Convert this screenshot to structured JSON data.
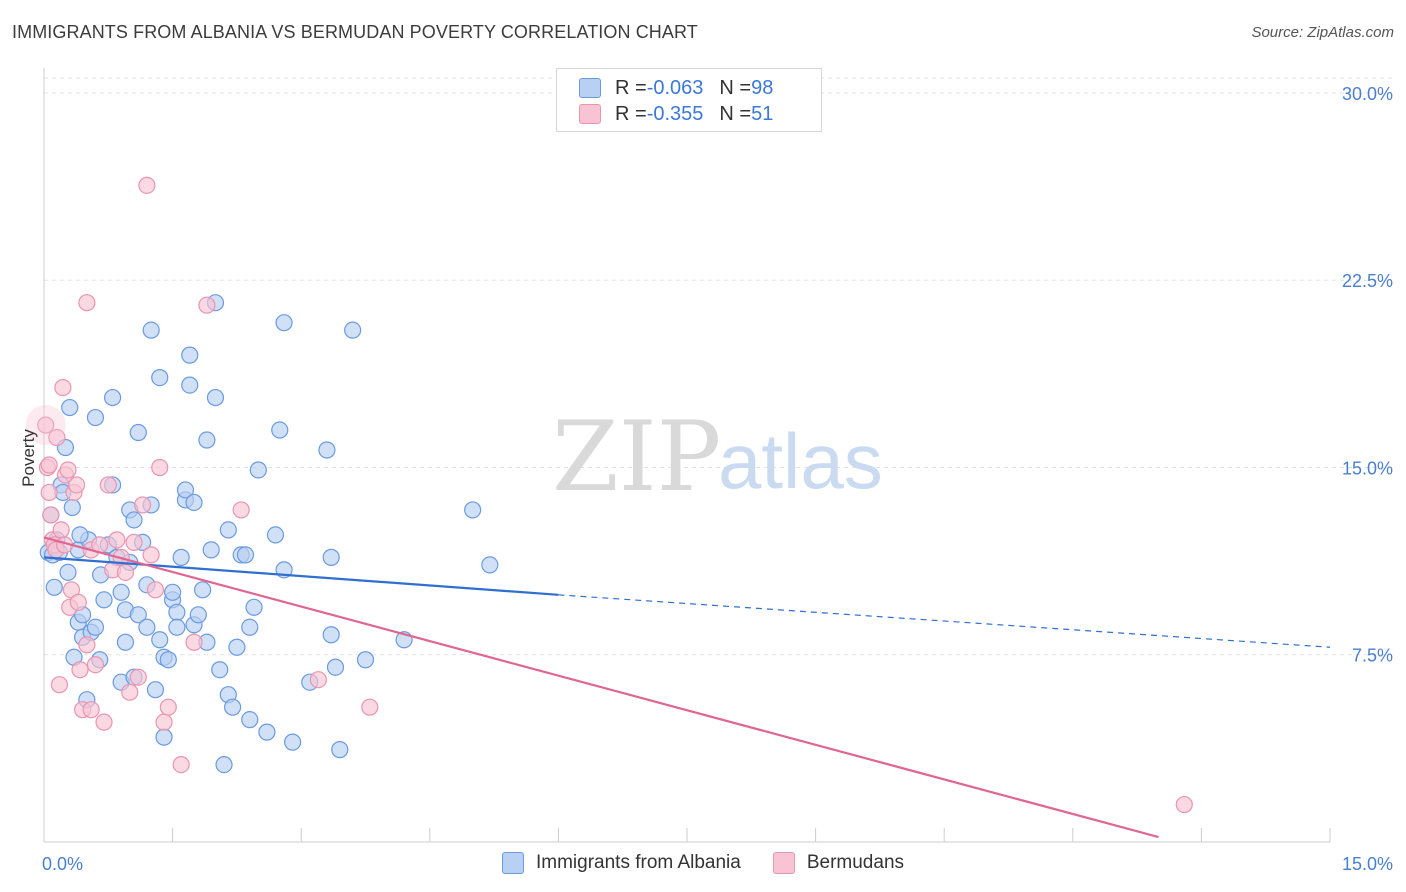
{
  "header": {
    "title": "IMMIGRANTS FROM ALBANIA VS BERMUDAN POVERTY CORRELATION CHART",
    "source": "Source: ZipAtlas.com"
  },
  "legend": {
    "rows": [
      {
        "r_label": "R = ",
        "r_value": "-0.063",
        "n_label": "N = ",
        "n_value": "98"
      },
      {
        "r_label": "R = ",
        "r_value": "-0.355",
        "n_label": "N = ",
        "n_value": "51"
      }
    ]
  },
  "watermark": {
    "zip": "ZIP",
    "atlas": "atlas"
  },
  "colors": {
    "blue_fill": "#b7d0f3",
    "blue_stroke": "#6b9ae0",
    "blue_line": "#2f6fd0",
    "pink_fill": "#f8c4d4",
    "pink_stroke": "#ea94b0",
    "pink_line": "#e06692",
    "grid": "#e2e2e2",
    "axis": "#cccccc"
  },
  "chart_data": {
    "type": "scatter",
    "title": "IMMIGRANTS FROM ALBANIA VS BERMUDAN POVERTY CORRELATION CHART",
    "xlabel": "",
    "ylabel": "Poverty",
    "xlim": [
      0,
      15
    ],
    "ylim": [
      0,
      31
    ],
    "x_tick_labels": [
      "0.0%",
      "15.0%"
    ],
    "y_ticks": [
      7.5,
      15.0,
      22.5,
      30.0
    ],
    "y_tick_labels": [
      "7.5%",
      "15.0%",
      "22.5%",
      "30.0%"
    ],
    "series": [
      {
        "name": "Immigrants from Albania",
        "r": -0.063,
        "n": 98,
        "trend": {
          "x0": 0.0,
          "y0": 11.4,
          "x1": 6.0,
          "y1": 9.9,
          "dash_to_x": 15.0,
          "dash_to_y": 7.8
        },
        "points": [
          [
            0.05,
            11.6
          ],
          [
            0.1,
            11.5
          ],
          [
            0.12,
            10.2
          ],
          [
            0.15,
            12.1
          ],
          [
            0.2,
            14.3
          ],
          [
            0.25,
            15.8
          ],
          [
            0.28,
            10.8
          ],
          [
            0.3,
            17.4
          ],
          [
            0.33,
            13.4
          ],
          [
            0.35,
            7.4
          ],
          [
            0.4,
            11.7
          ],
          [
            0.4,
            8.8
          ],
          [
            0.45,
            9.1
          ],
          [
            0.45,
            8.2
          ],
          [
            0.5,
            5.7
          ],
          [
            0.52,
            12.1
          ],
          [
            0.55,
            8.4
          ],
          [
            0.6,
            8.6
          ],
          [
            0.6,
            17.0
          ],
          [
            0.65,
            7.3
          ],
          [
            0.66,
            10.7
          ],
          [
            0.7,
            9.7
          ],
          [
            0.75,
            11.9
          ],
          [
            0.8,
            14.3
          ],
          [
            0.8,
            17.8
          ],
          [
            0.85,
            11.4
          ],
          [
            0.9,
            10.0
          ],
          [
            0.9,
            6.4
          ],
          [
            0.95,
            9.3
          ],
          [
            0.95,
            8.0
          ],
          [
            1.0,
            13.3
          ],
          [
            1.0,
            11.2
          ],
          [
            1.05,
            12.9
          ],
          [
            1.05,
            6.6
          ],
          [
            1.1,
            16.4
          ],
          [
            1.1,
            9.1
          ],
          [
            1.15,
            12.0
          ],
          [
            1.2,
            10.3
          ],
          [
            1.2,
            8.6
          ],
          [
            1.25,
            13.5
          ],
          [
            1.25,
            20.5
          ],
          [
            1.3,
            6.1
          ],
          [
            1.35,
            8.1
          ],
          [
            1.35,
            18.6
          ],
          [
            1.4,
            7.4
          ],
          [
            1.4,
            4.2
          ],
          [
            1.45,
            7.3
          ],
          [
            1.5,
            9.7
          ],
          [
            1.5,
            10.0
          ],
          [
            1.55,
            9.2
          ],
          [
            1.55,
            8.6
          ],
          [
            1.6,
            11.4
          ],
          [
            1.65,
            13.7
          ],
          [
            1.65,
            14.1
          ],
          [
            1.7,
            19.5
          ],
          [
            1.7,
            18.3
          ],
          [
            1.75,
            13.6
          ],
          [
            1.75,
            8.7
          ],
          [
            1.8,
            9.1
          ],
          [
            1.85,
            10.1
          ],
          [
            1.9,
            16.1
          ],
          [
            1.9,
            8.0
          ],
          [
            1.95,
            11.7
          ],
          [
            2.0,
            21.6
          ],
          [
            2.0,
            17.8
          ],
          [
            2.05,
            6.9
          ],
          [
            2.1,
            3.1
          ],
          [
            2.15,
            12.5
          ],
          [
            2.15,
            5.9
          ],
          [
            2.2,
            5.4
          ],
          [
            2.25,
            7.8
          ],
          [
            2.3,
            11.5
          ],
          [
            2.35,
            11.5
          ],
          [
            2.4,
            4.9
          ],
          [
            2.4,
            8.6
          ],
          [
            2.45,
            9.4
          ],
          [
            2.5,
            14.9
          ],
          [
            2.6,
            4.4
          ],
          [
            2.7,
            12.3
          ],
          [
            2.75,
            16.5
          ],
          [
            2.8,
            10.9
          ],
          [
            2.8,
            20.8
          ],
          [
            2.9,
            4.0
          ],
          [
            3.1,
            6.4
          ],
          [
            3.3,
            15.7
          ],
          [
            3.35,
            11.4
          ],
          [
            3.35,
            8.3
          ],
          [
            3.4,
            7.0
          ],
          [
            3.45,
            3.7
          ],
          [
            3.6,
            20.5
          ],
          [
            3.75,
            7.3
          ],
          [
            4.2,
            8.1
          ],
          [
            5.0,
            13.3
          ],
          [
            5.2,
            11.1
          ],
          [
            0.08,
            13.1
          ],
          [
            0.18,
            11.6
          ],
          [
            0.22,
            14.0
          ],
          [
            0.42,
            12.3
          ]
        ]
      },
      {
        "name": "Bermudans",
        "r": -0.355,
        "n": 51,
        "trend": {
          "x0": 0.0,
          "y0": 12.2,
          "x1": 13.0,
          "y1": 0.2
        },
        "points": [
          [
            0.02,
            16.7
          ],
          [
            0.04,
            15.0
          ],
          [
            0.06,
            14.0
          ],
          [
            0.08,
            13.1
          ],
          [
            0.1,
            12.1
          ],
          [
            0.12,
            11.9
          ],
          [
            0.15,
            16.2
          ],
          [
            0.18,
            6.3
          ],
          [
            0.2,
            12.5
          ],
          [
            0.22,
            18.2
          ],
          [
            0.25,
            14.7
          ],
          [
            0.28,
            14.9
          ],
          [
            0.3,
            9.4
          ],
          [
            0.32,
            10.1
          ],
          [
            0.35,
            14.0
          ],
          [
            0.38,
            14.3
          ],
          [
            0.4,
            9.6
          ],
          [
            0.42,
            6.9
          ],
          [
            0.45,
            5.3
          ],
          [
            0.5,
            7.9
          ],
          [
            0.5,
            21.6
          ],
          [
            0.55,
            11.7
          ],
          [
            0.55,
            5.3
          ],
          [
            0.6,
            7.1
          ],
          [
            0.65,
            11.9
          ],
          [
            0.7,
            4.8
          ],
          [
            0.75,
            14.3
          ],
          [
            0.8,
            10.9
          ],
          [
            0.85,
            12.1
          ],
          [
            0.9,
            11.4
          ],
          [
            0.95,
            10.8
          ],
          [
            1.0,
            6.0
          ],
          [
            1.05,
            12.0
          ],
          [
            1.1,
            6.6
          ],
          [
            1.15,
            13.5
          ],
          [
            1.2,
            26.3
          ],
          [
            1.25,
            11.5
          ],
          [
            1.3,
            10.1
          ],
          [
            1.35,
            15.0
          ],
          [
            1.4,
            4.8
          ],
          [
            1.45,
            5.4
          ],
          [
            1.6,
            3.1
          ],
          [
            1.75,
            8.0
          ],
          [
            1.9,
            21.5
          ],
          [
            2.3,
            13.3
          ],
          [
            3.2,
            6.5
          ],
          [
            3.8,
            5.4
          ],
          [
            13.3,
            1.5
          ],
          [
            0.06,
            15.1
          ],
          [
            0.14,
            11.7
          ],
          [
            0.24,
            11.9
          ]
        ]
      }
    ]
  },
  "bottom_legend": {
    "items": [
      "Immigrants from Albania",
      "Bermudans"
    ]
  }
}
